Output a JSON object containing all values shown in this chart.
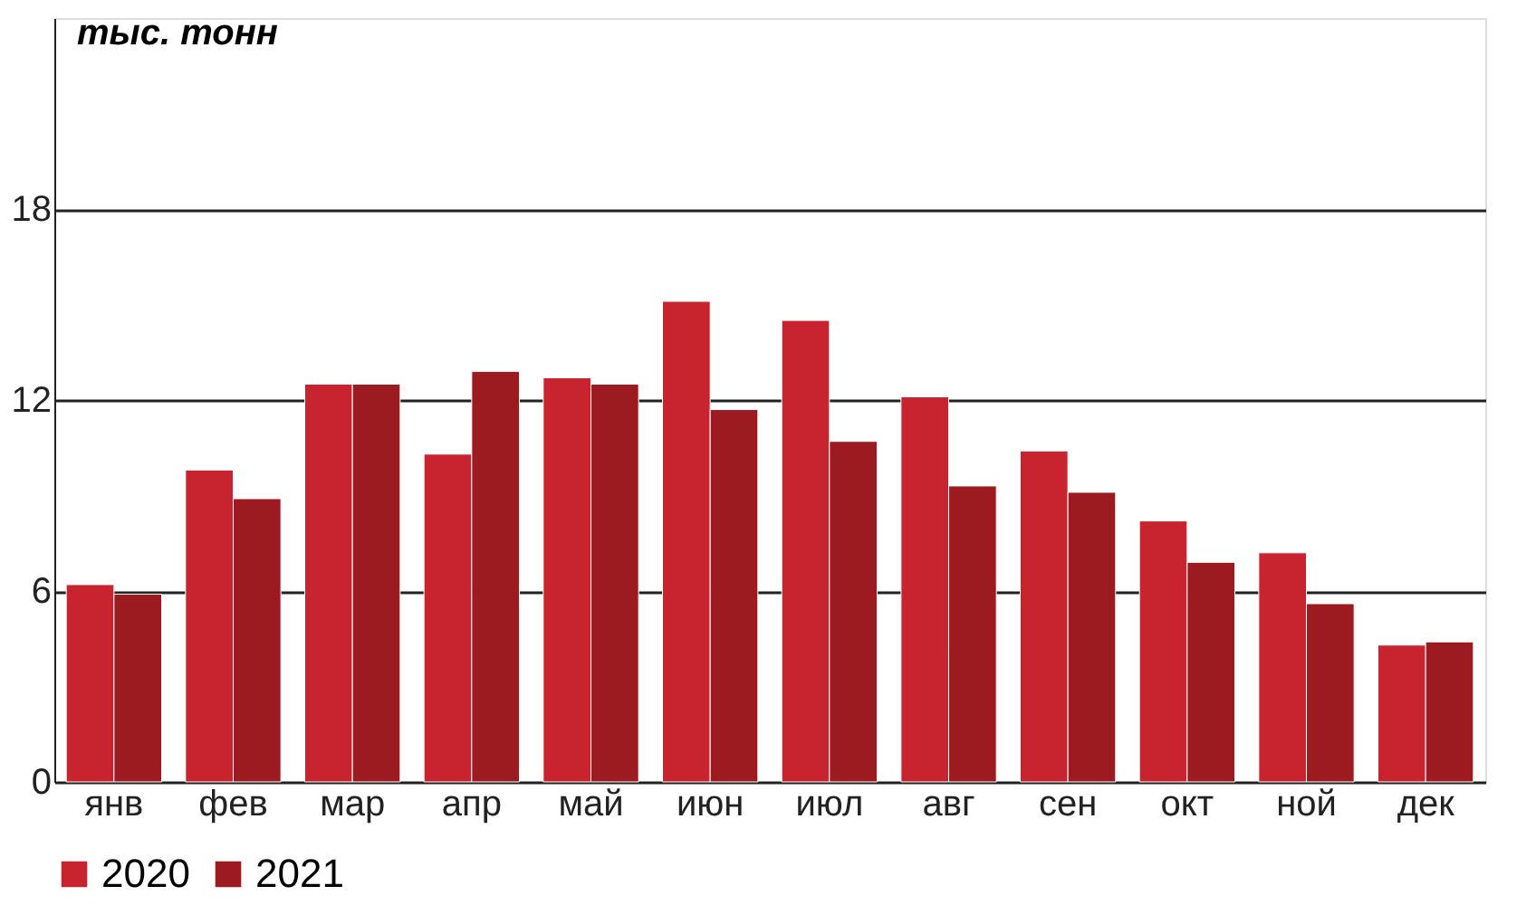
{
  "chart_data": {
    "type": "bar",
    "ylabel": "тыс. тонн",
    "categories": [
      "янв",
      "фев",
      "мар",
      "апр",
      "май",
      "июн",
      "июл",
      "авг",
      "сен",
      "окт",
      "ной",
      "дек"
    ],
    "series": [
      {
        "name": "2020",
        "color": "#c8242f",
        "values": [
          6.2,
          9.8,
          12.5,
          10.3,
          12.7,
          15.1,
          14.5,
          12.1,
          10.4,
          8.2,
          7.2,
          4.3
        ]
      },
      {
        "name": "2021",
        "color": "#9b1b20",
        "values": [
          5.9,
          8.9,
          12.5,
          12.9,
          12.5,
          11.7,
          10.7,
          9.3,
          9.1,
          6.9,
          5.6,
          4.4
        ]
      }
    ],
    "ylim": [
      0,
      24
    ],
    "yticks": [
      0,
      6,
      12,
      18
    ],
    "grid": "y",
    "legend": "bottom"
  }
}
